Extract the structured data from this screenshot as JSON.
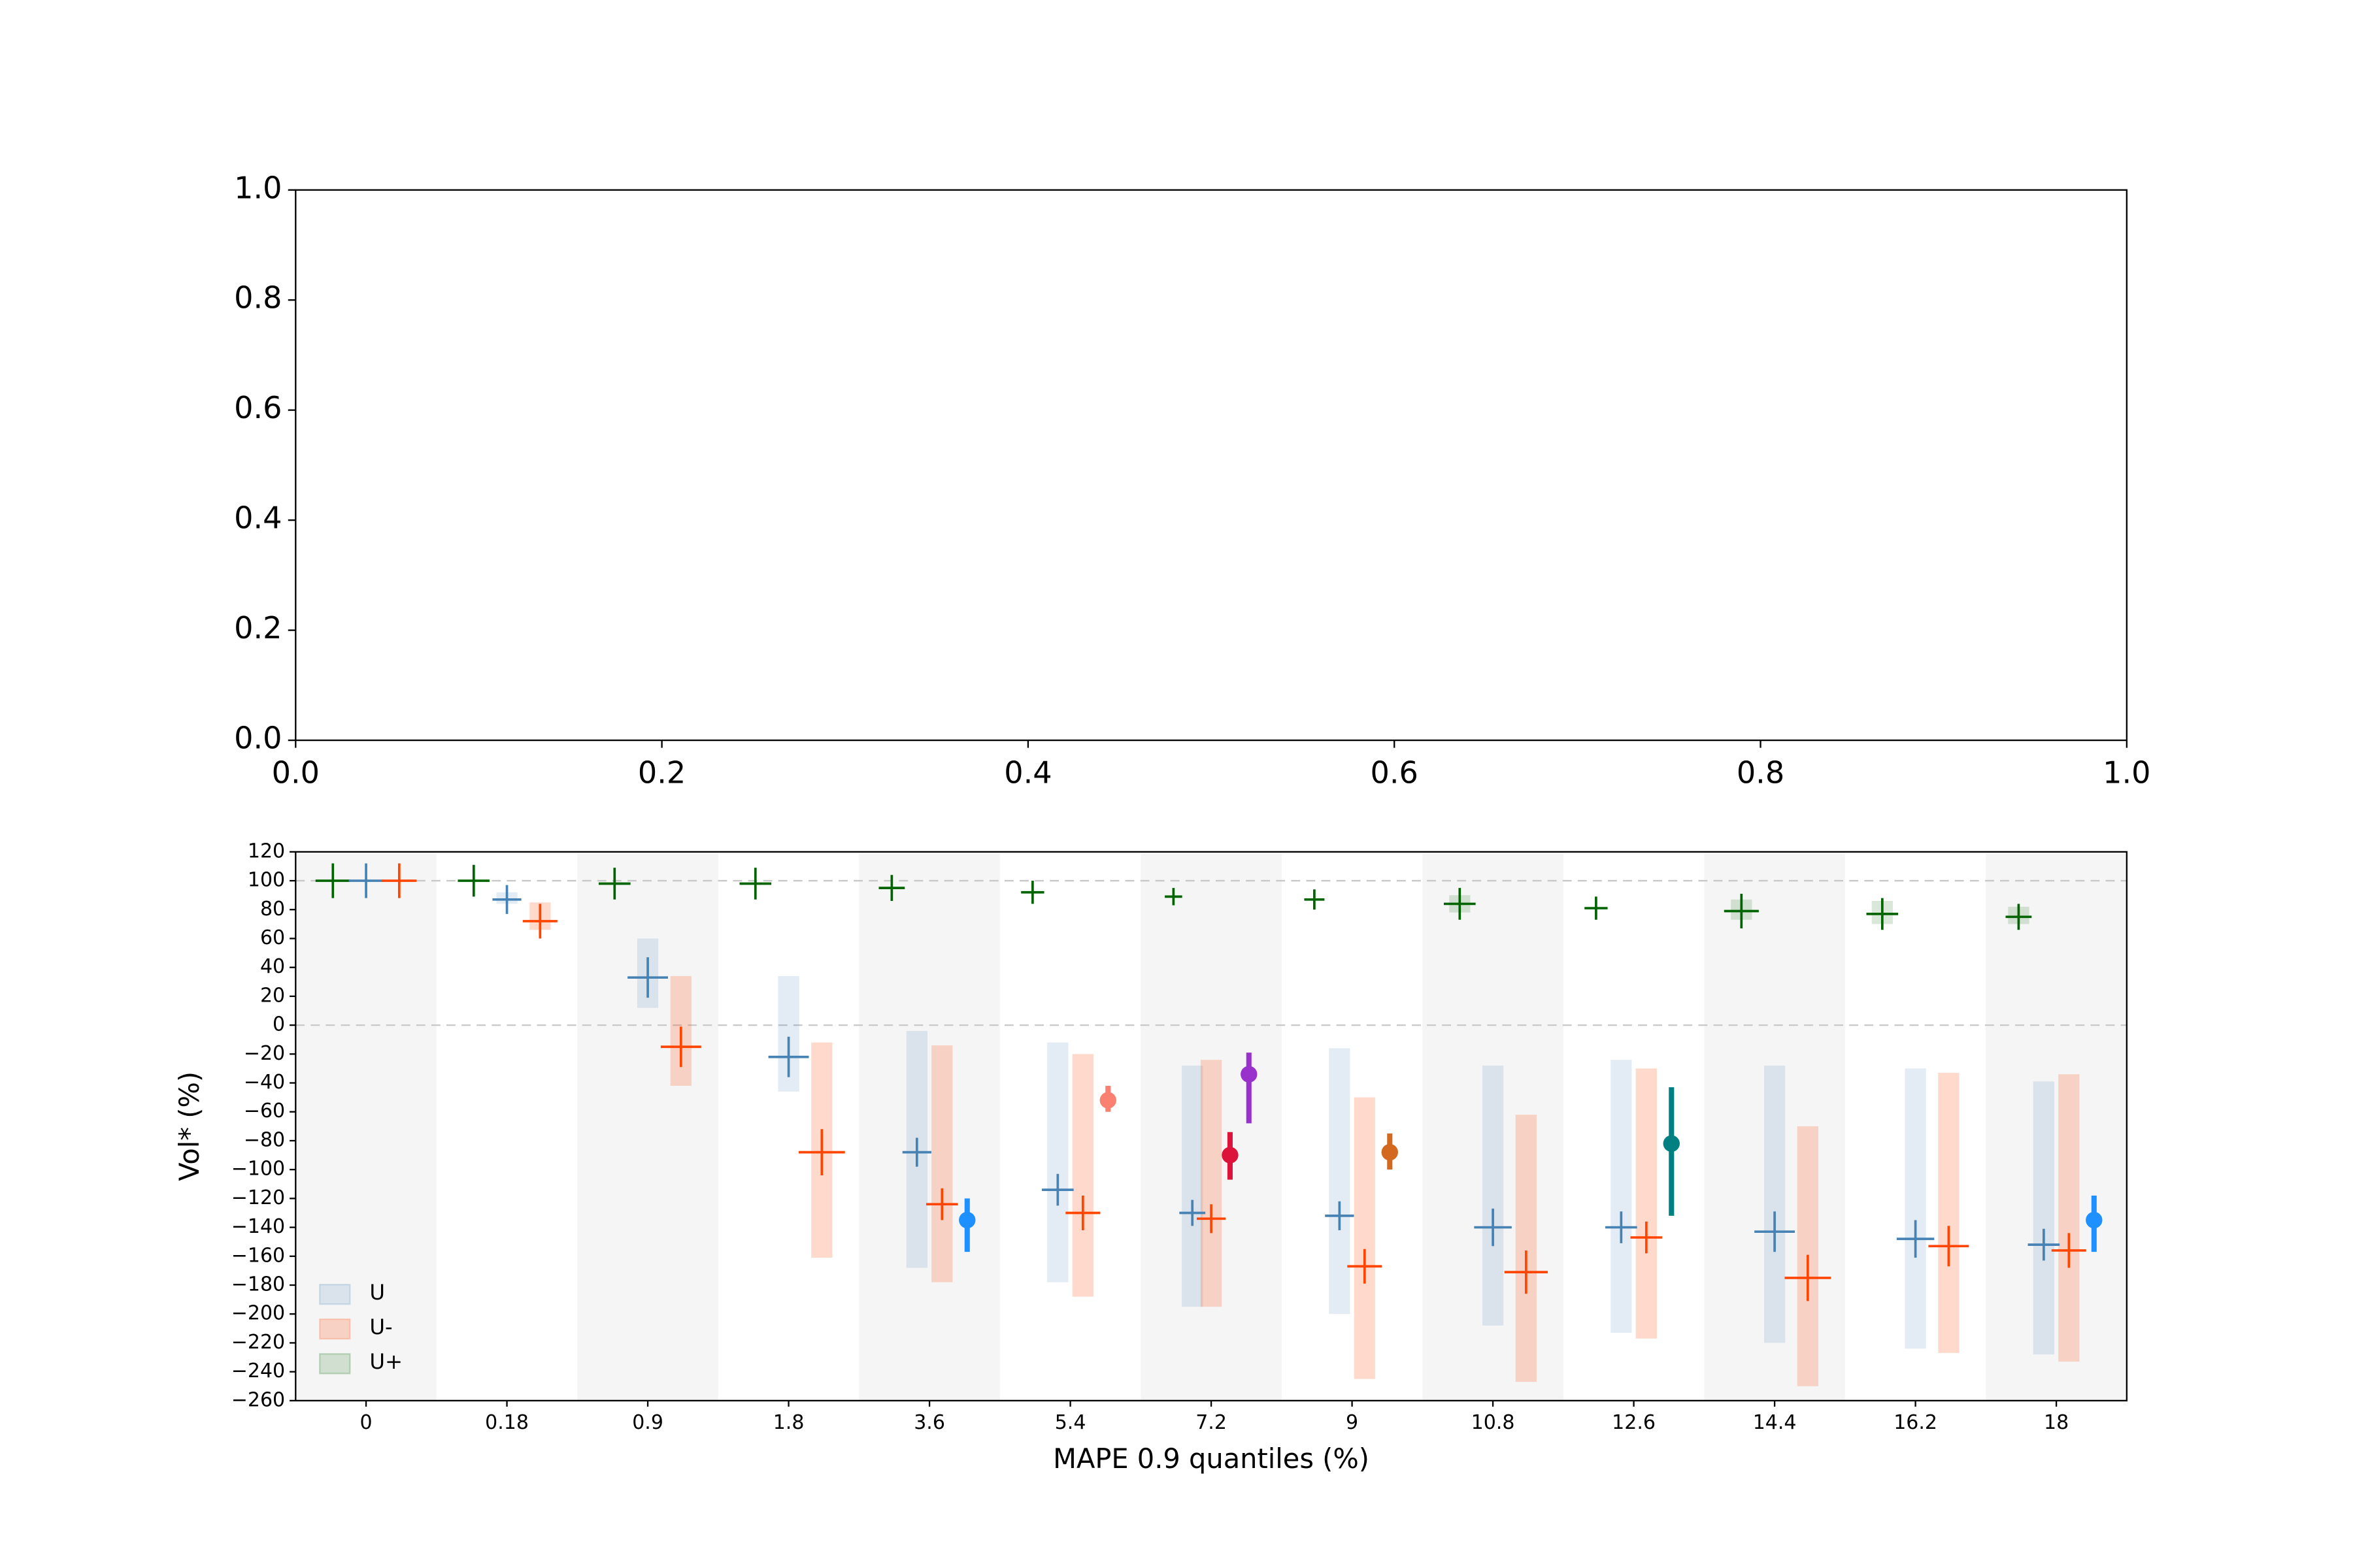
{
  "chart_data": [
    {
      "type": "empty",
      "xlim": [
        0,
        1
      ],
      "ylim": [
        0,
        1
      ],
      "xticks": [
        {
          "value": 0,
          "label": "0.0"
        },
        0.2,
        0.4,
        0.6,
        0.8,
        {
          "value": 1,
          "label": "1.0"
        }
      ],
      "yticks": [
        {
          "value": 0,
          "label": "0.0"
        },
        0.2,
        0.4,
        0.6,
        0.8,
        {
          "value": 1,
          "label": "1.0"
        }
      ]
    },
    {
      "type": "error_cross",
      "xlabel": "MAPE 0.9 quantiles (%)",
      "ylabel": "Vol* (%)",
      "categories": [
        "0",
        "0.18",
        "0.9",
        "1.8",
        "3.6",
        "5.4",
        "7.2",
        "9",
        "10.8",
        "12.6",
        "14.4",
        "16.2",
        "18"
      ],
      "ylim": [
        -260,
        120
      ],
      "yticks": [
        120,
        100,
        80,
        60,
        40,
        20,
        0,
        {
          "value": -20,
          "label": "−20"
        },
        {
          "value": -40,
          "label": "−40"
        },
        {
          "value": -60,
          "label": "−60"
        },
        {
          "value": -80,
          "label": "−80"
        },
        {
          "value": -100,
          "label": "−100"
        },
        {
          "value": -120,
          "label": "−120"
        },
        {
          "value": -140,
          "label": "−140"
        },
        {
          "value": -160,
          "label": "−160"
        },
        {
          "value": -180,
          "label": "−180"
        },
        {
          "value": -200,
          "label": "−200"
        },
        {
          "value": -220,
          "label": "−220"
        },
        {
          "value": -240,
          "label": "−240"
        },
        {
          "value": -260,
          "label": "−260"
        }
      ],
      "hlines": [
        0,
        100
      ],
      "alternate_shading": true,
      "legend": "lower left",
      "series": [
        {
          "name": "U",
          "color": "#4682b4",
          "values": [
            100,
            87,
            33,
            -22,
            -88,
            -114,
            -130,
            -132,
            -140,
            -140,
            -143,
            -148,
            -152
          ],
          "errors": [
            12,
            10,
            14,
            14,
            10,
            11,
            9,
            10,
            13,
            11,
            14,
            13,
            11
          ],
          "band_low": [
            null,
            84,
            12,
            -46,
            -168,
            -178,
            -195,
            -200,
            -208,
            -213,
            -220,
            -224,
            -228
          ],
          "band_high": [
            null,
            92,
            60,
            34,
            -4,
            -12,
            -28,
            -16,
            -28,
            -24,
            -28,
            -30,
            -39
          ]
        },
        {
          "name": "U-",
          "color": "#ff4500",
          "values": [
            100,
            72,
            -15,
            -88,
            -124,
            -130,
            -134,
            -167,
            -171,
            -147,
            -175,
            -153,
            -156
          ],
          "errors": [
            12,
            12,
            14,
            16,
            11,
            12,
            10,
            12,
            15,
            11,
            16,
            14,
            12
          ],
          "band_low": [
            null,
            66,
            -42,
            -161,
            -178,
            -188,
            -195,
            -245,
            -247,
            -217,
            -250,
            -227,
            -233
          ],
          "band_high": [
            null,
            85,
            34,
            -12,
            -14,
            -20,
            -24,
            -50,
            -62,
            -30,
            -70,
            -33,
            -34
          ]
        },
        {
          "name": "U+",
          "color": "#006400",
          "values": [
            100,
            100,
            98,
            98,
            95,
            92,
            89,
            87,
            84,
            81,
            79,
            77,
            75
          ],
          "errors": [
            12,
            11,
            11,
            11,
            9,
            8,
            6,
            7,
            11,
            8,
            12,
            11,
            9
          ],
          "band_low": [
            null,
            null,
            null,
            null,
            null,
            null,
            null,
            null,
            78,
            null,
            73,
            70,
            70
          ],
          "band_high": [
            null,
            null,
            null,
            null,
            null,
            null,
            null,
            null,
            90,
            null,
            87,
            86,
            82
          ]
        }
      ],
      "points": [
        {
          "values": [
            null,
            null,
            null,
            null,
            -135,
            -52,
            -90,
            -88,
            null,
            -82,
            null,
            null,
            -135
          ],
          "low": [
            null,
            null,
            null,
            null,
            -157,
            -60,
            -107,
            -100,
            null,
            -132,
            null,
            null,
            -157
          ],
          "high": [
            null,
            null,
            null,
            null,
            -120,
            -42,
            -74,
            -75,
            null,
            -43,
            null,
            null,
            -118
          ],
          "colors": [
            null,
            null,
            null,
            null,
            "#1e90ff",
            "#fa8072",
            "#dc143c",
            "#d2691e",
            null,
            "#008080",
            null,
            null,
            "#1e90ff"
          ]
        },
        {
          "values": [
            null,
            null,
            null,
            null,
            null,
            null,
            -34,
            null,
            null,
            null,
            null,
            null,
            null
          ],
          "low": [
            null,
            null,
            null,
            null,
            null,
            null,
            -68,
            null,
            null,
            null,
            null,
            null,
            null
          ],
          "high": [
            null,
            null,
            null,
            null,
            null,
            null,
            -19,
            null,
            null,
            null,
            null,
            null,
            null
          ],
          "colors": [
            null,
            null,
            null,
            null,
            null,
            null,
            "#9932cc",
            null,
            null,
            null,
            null,
            null,
            null
          ]
        }
      ]
    }
  ]
}
